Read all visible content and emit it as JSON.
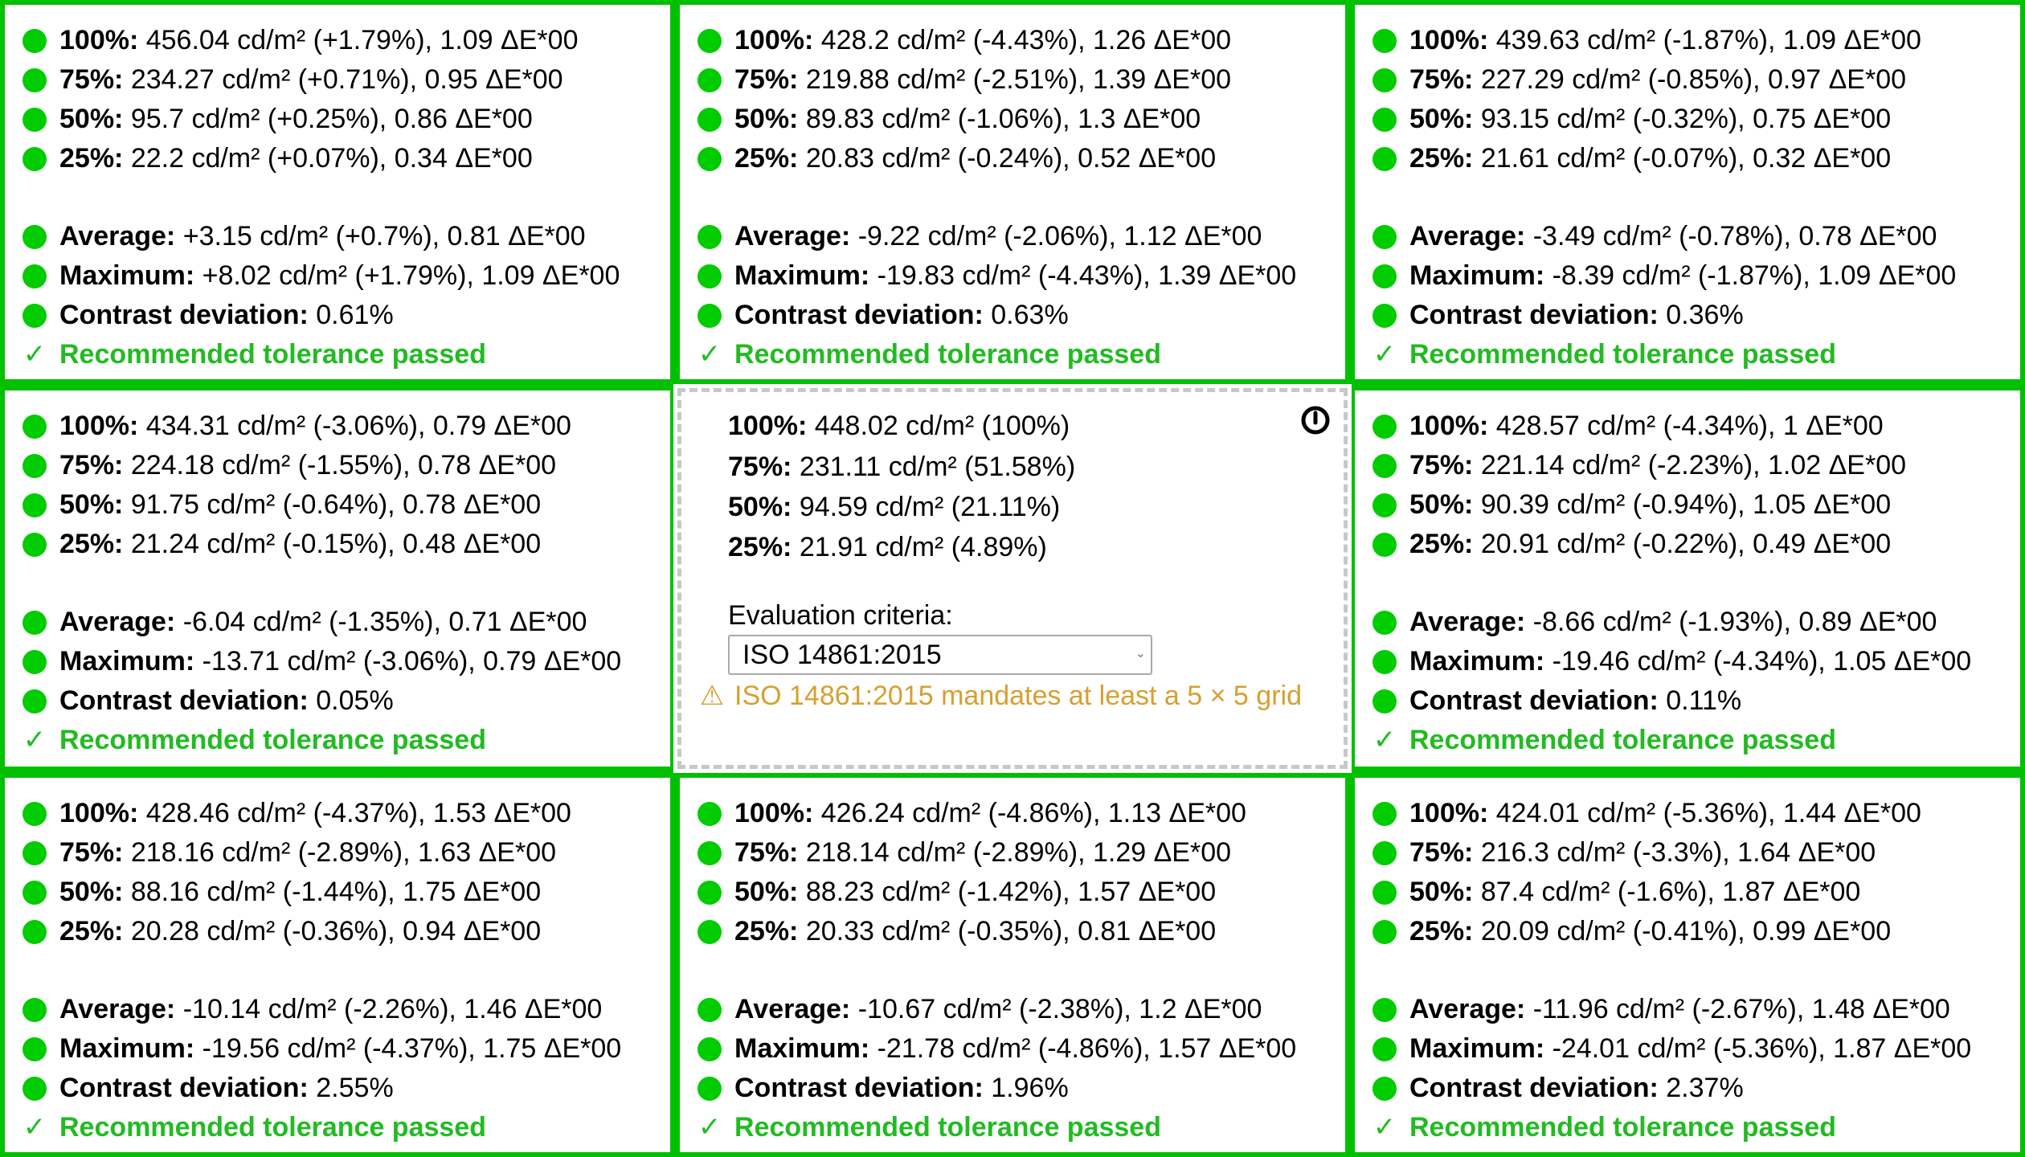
{
  "cells": [
    {
      "rows": [
        {
          "label": "100%:",
          "value": "456.04 cd/m² (+1.79%), 1.09 ΔE*00"
        },
        {
          "label": "75%:",
          "value": "234.27 cd/m² (+0.71%), 0.95 ΔE*00"
        },
        {
          "label": "50%:",
          "value": "95.7 cd/m² (+0.25%), 0.86 ΔE*00"
        },
        {
          "label": "25%:",
          "value": "22.2 cd/m² (+0.07%), 0.34 ΔE*00"
        }
      ],
      "average": {
        "label": "Average:",
        "value": "+3.15 cd/m² (+0.7%), 0.81 ΔE*00"
      },
      "maximum": {
        "label": "Maximum:",
        "value": "+8.02 cd/m² (+1.79%), 1.09 ΔE*00"
      },
      "contrast": {
        "label": "Contrast deviation:",
        "value": "0.61%"
      },
      "status": {
        "check": "✓",
        "text": "Recommended tolerance passed"
      }
    },
    {
      "rows": [
        {
          "label": "100%:",
          "value": "428.2 cd/m² (-4.43%), 1.26 ΔE*00"
        },
        {
          "label": "75%:",
          "value": "219.88 cd/m² (-2.51%), 1.39 ΔE*00"
        },
        {
          "label": "50%:",
          "value": "89.83 cd/m² (-1.06%), 1.3 ΔE*00"
        },
        {
          "label": "25%:",
          "value": "20.83 cd/m² (-0.24%), 0.52 ΔE*00"
        }
      ],
      "average": {
        "label": "Average:",
        "value": "-9.22 cd/m² (-2.06%), 1.12 ΔE*00"
      },
      "maximum": {
        "label": "Maximum:",
        "value": "-19.83 cd/m² (-4.43%), 1.39 ΔE*00"
      },
      "contrast": {
        "label": "Contrast deviation:",
        "value": "0.63%"
      },
      "status": {
        "check": "✓",
        "text": "Recommended tolerance passed"
      }
    },
    {
      "rows": [
        {
          "label": "100%:",
          "value": "439.63 cd/m² (-1.87%), 1.09 ΔE*00"
        },
        {
          "label": "75%:",
          "value": "227.29 cd/m² (-0.85%), 0.97 ΔE*00"
        },
        {
          "label": "50%:",
          "value": "93.15 cd/m² (-0.32%), 0.75 ΔE*00"
        },
        {
          "label": "25%:",
          "value": "21.61 cd/m² (-0.07%), 0.32 ΔE*00"
        }
      ],
      "average": {
        "label": "Average:",
        "value": "-3.49 cd/m² (-0.78%), 0.78 ΔE*00"
      },
      "maximum": {
        "label": "Maximum:",
        "value": "-8.39 cd/m² (-1.87%), 1.09 ΔE*00"
      },
      "contrast": {
        "label": "Contrast deviation:",
        "value": "0.36%"
      },
      "status": {
        "check": "✓",
        "text": "Recommended tolerance passed"
      }
    },
    {
      "rows": [
        {
          "label": "100%:",
          "value": "434.31 cd/m² (-3.06%), 0.79 ΔE*00"
        },
        {
          "label": "75%:",
          "value": "224.18 cd/m² (-1.55%), 0.78 ΔE*00"
        },
        {
          "label": "50%:",
          "value": "91.75 cd/m² (-0.64%), 0.78 ΔE*00"
        },
        {
          "label": "25%:",
          "value": "21.24 cd/m² (-0.15%), 0.48 ΔE*00"
        }
      ],
      "average": {
        "label": "Average:",
        "value": "-6.04 cd/m² (-1.35%), 0.71 ΔE*00"
      },
      "maximum": {
        "label": "Maximum:",
        "value": "-13.71 cd/m² (-3.06%), 0.79 ΔE*00"
      },
      "contrast": {
        "label": "Contrast deviation:",
        "value": "0.05%"
      },
      "status": {
        "check": "✓",
        "text": "Recommended tolerance passed"
      }
    },
    {
      "rows": [
        {
          "label": "100%:",
          "value": "428.57 cd/m² (-4.34%), 1 ΔE*00"
        },
        {
          "label": "75%:",
          "value": "221.14 cd/m² (-2.23%), 1.02 ΔE*00"
        },
        {
          "label": "50%:",
          "value": "90.39 cd/m² (-0.94%), 1.05 ΔE*00"
        },
        {
          "label": "25%:",
          "value": "20.91 cd/m² (-0.22%), 0.49 ΔE*00"
        }
      ],
      "average": {
        "label": "Average:",
        "value": "-8.66 cd/m² (-1.93%), 0.89 ΔE*00"
      },
      "maximum": {
        "label": "Maximum:",
        "value": "-19.46 cd/m² (-4.34%), 1.05 ΔE*00"
      },
      "contrast": {
        "label": "Contrast deviation:",
        "value": "0.11%"
      },
      "status": {
        "check": "✓",
        "text": "Recommended tolerance passed"
      }
    },
    {
      "rows": [
        {
          "label": "100%:",
          "value": "428.46 cd/m² (-4.37%), 1.53 ΔE*00"
        },
        {
          "label": "75%:",
          "value": "218.16 cd/m² (-2.89%), 1.63 ΔE*00"
        },
        {
          "label": "50%:",
          "value": "88.16 cd/m² (-1.44%), 1.75 ΔE*00"
        },
        {
          "label": "25%:",
          "value": "20.28 cd/m² (-0.36%), 0.94 ΔE*00"
        }
      ],
      "average": {
        "label": "Average:",
        "value": "-10.14 cd/m² (-2.26%), 1.46 ΔE*00"
      },
      "maximum": {
        "label": "Maximum:",
        "value": "-19.56 cd/m² (-4.37%), 1.75 ΔE*00"
      },
      "contrast": {
        "label": "Contrast deviation:",
        "value": "2.55%"
      },
      "status": {
        "check": "✓",
        "text": "Recommended tolerance passed"
      }
    },
    {
      "rows": [
        {
          "label": "100%:",
          "value": "426.24 cd/m² (-4.86%), 1.13 ΔE*00"
        },
        {
          "label": "75%:",
          "value": "218.14 cd/m² (-2.89%), 1.29 ΔE*00"
        },
        {
          "label": "50%:",
          "value": "88.23 cd/m² (-1.42%), 1.57 ΔE*00"
        },
        {
          "label": "25%:",
          "value": "20.33 cd/m² (-0.35%), 0.81 ΔE*00"
        }
      ],
      "average": {
        "label": "Average:",
        "value": "-10.67 cd/m² (-2.38%), 1.2 ΔE*00"
      },
      "maximum": {
        "label": "Maximum:",
        "value": "-21.78 cd/m² (-4.86%), 1.57 ΔE*00"
      },
      "contrast": {
        "label": "Contrast deviation:",
        "value": "1.96%"
      },
      "status": {
        "check": "✓",
        "text": "Recommended tolerance passed"
      }
    },
    {
      "rows": [
        {
          "label": "100%:",
          "value": "424.01 cd/m² (-5.36%), 1.44 ΔE*00"
        },
        {
          "label": "75%:",
          "value": "216.3 cd/m² (-3.3%), 1.64 ΔE*00"
        },
        {
          "label": "50%:",
          "value": "87.4 cd/m² (-1.6%), 1.87 ΔE*00"
        },
        {
          "label": "25%:",
          "value": "20.09 cd/m² (-0.41%), 0.99 ΔE*00"
        }
      ],
      "average": {
        "label": "Average:",
        "value": "-11.96 cd/m² (-2.67%), 1.48 ΔE*00"
      },
      "maximum": {
        "label": "Maximum:",
        "value": "-24.01 cd/m² (-5.36%), 1.87 ΔE*00"
      },
      "contrast": {
        "label": "Contrast deviation:",
        "value": "2.37%"
      },
      "status": {
        "check": "✓",
        "text": "Recommended tolerance passed"
      }
    }
  ],
  "center": {
    "rows": [
      {
        "label": "100%:",
        "value": "448.02 cd/m² (100%)"
      },
      {
        "label": "75%:",
        "value": "231.11 cd/m² (51.58%)"
      },
      {
        "label": "50%:",
        "value": "94.59 cd/m² (21.11%)"
      },
      {
        "label": "25%:",
        "value": "21.91 cd/m² (4.89%)"
      }
    ],
    "criteria_label": "Evaluation criteria:",
    "criteria_selected": "ISO 14861:2015",
    "warning_icon": "⚠",
    "warning_text": "ISO 14861:2015 mandates at least a 5 × 5 grid",
    "icon": "power-icon"
  },
  "colors": {
    "grid_border": "#00c000",
    "status_dot": "#00cc00",
    "pass_text": "#22bb22",
    "warning_text": "#d6a030",
    "dashed_border": "#c8c8c8"
  }
}
